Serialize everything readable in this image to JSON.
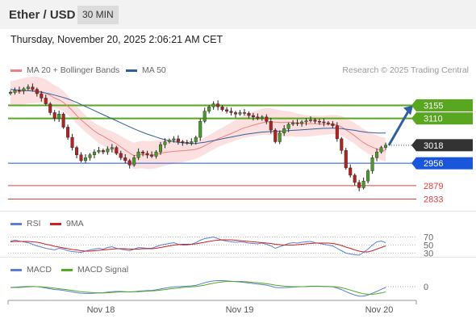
{
  "header": {
    "title": "Ether / USD",
    "timeframe": "30 MIN"
  },
  "datetime": "Thursday, November 20, 2025 2:06:21 AM CET",
  "legend": {
    "ma20_label": "MA 20 + Bollinger Bands",
    "ma50_label": "MA 50",
    "copyright": "Research © 2025 Trading Central",
    "ma20_color": "#f08080",
    "ma50_color": "#2f5f9e"
  },
  "rsi_legend": {
    "rsi": "RSI",
    "ma": "9MA",
    "rsi_color": "#5b7fd6",
    "ma_color": "#cc2222"
  },
  "macd_legend": {
    "macd": "MACD",
    "signal": "MACD Signal",
    "macd_color": "#5b7fd6",
    "signal_color": "#55aa22"
  },
  "chart_data": [
    {
      "type": "candlestick",
      "title": "Ether / USD",
      "timeframe": "30 MIN",
      "x_ticks": [
        "Nov 18",
        "Nov 19",
        "Nov 20"
      ],
      "ylim": [
        2790,
        3245
      ],
      "last_price": 3018,
      "levels": [
        {
          "label": "3155",
          "value": 3155,
          "kind": "resistance",
          "color": "#59a620"
        },
        {
          "label": "3110",
          "value": 3110,
          "kind": "resistance",
          "color": "#59a620"
        },
        {
          "label": "3018",
          "value": 3018,
          "kind": "last",
          "color": "#333333"
        },
        {
          "label": "2956",
          "value": 2956,
          "kind": "support",
          "color": "#1a56db"
        },
        {
          "label": "2879",
          "value": 2879,
          "kind": "support",
          "color": "#e04040"
        },
        {
          "label": "2833",
          "value": 2833,
          "kind": "support",
          "color": "#e04040"
        }
      ],
      "forecast_arrow": {
        "from": 3018,
        "to": 3155,
        "color": "#2f5f9e"
      },
      "close": [
        3200,
        3207,
        3205,
        3212,
        3218,
        3210,
        3195,
        3180,
        3160,
        3130,
        3110,
        3125,
        3080,
        3045,
        3010,
        2985,
        2965,
        2975,
        2985,
        2995,
        3000,
        2995,
        3005,
        3010,
        2990,
        2975,
        2965,
        2950,
        2975,
        2995,
        2990,
        2985,
        2980,
        2995,
        3020,
        3030,
        3035,
        3040,
        3030,
        3028,
        3025,
        3030,
        3045,
        3100,
        3135,
        3150,
        3160,
        3150,
        3140,
        3135,
        3130,
        3125,
        3130,
        3128,
        3120,
        3115,
        3110,
        3115,
        3100,
        3070,
        3030,
        3060,
        3075,
        3090,
        3095,
        3092,
        3098,
        3102,
        3105,
        3100,
        3098,
        3095,
        3092,
        3085,
        3040,
        3000,
        2940,
        2915,
        2890,
        2872,
        2895,
        2930,
        2975,
        2995,
        3010,
        3018
      ],
      "ma20": [
        3200,
        3200,
        3202,
        3204,
        3206,
        3206,
        3205,
        3202,
        3197,
        3189,
        3180,
        3174,
        3165,
        3152,
        3137,
        3120,
        3105,
        3092,
        3079,
        3067,
        3057,
        3049,
        3040,
        3032,
        3023,
        3012,
        3001,
        2991,
        2982,
        2985,
        2986,
        2984,
        2984,
        2986,
        2990,
        2993,
        2995,
        2997,
        2998,
        2999,
        3000,
        3002,
        3004,
        3009,
        3016,
        3024,
        3032,
        3040,
        3046,
        3052,
        3058,
        3065,
        3072,
        3078,
        3082,
        3087,
        3091,
        3095,
        3098,
        3098,
        3097,
        3096,
        3096,
        3097,
        3096,
        3094,
        3093,
        3092,
        3092,
        3092,
        3091,
        3090,
        3090,
        3090,
        3087,
        3081,
        3071,
        3061,
        3050,
        3038,
        3027,
        3018,
        3011,
        3005,
        3000,
        2998
      ],
      "ma50": [
        3210,
        3208,
        3207,
        3206,
        3205,
        3204,
        3202,
        3200,
        3197,
        3194,
        3190,
        3186,
        3182,
        3177,
        3171,
        3165,
        3158,
        3151,
        3144,
        3137,
        3130,
        3123,
        3116,
        3109,
        3102,
        3095,
        3088,
        3081,
        3074,
        3068,
        3062,
        3056,
        3051,
        3046,
        3041,
        3037,
        3033,
        3030,
        3028,
        3026,
        3025,
        3024,
        3024,
        3026,
        3028,
        3031,
        3034,
        3037,
        3040,
        3043,
        3046,
        3049,
        3052,
        3055,
        3057,
        3059,
        3061,
        3063,
        3064,
        3065,
        3065,
        3066,
        3067,
        3068,
        3069,
        3070,
        3071,
        3072,
        3073,
        3074,
        3075,
        3076,
        3076,
        3077,
        3076,
        3075,
        3073,
        3071,
        3069,
        3066,
        3064,
        3062,
        3061,
        3060,
        3060,
        3060
      ]
    },
    {
      "type": "line",
      "title": "RSI",
      "y_ticks": [
        70,
        50,
        30
      ],
      "series": [
        {
          "name": "RSI",
          "color": "#5b7fd6",
          "values": [
            60,
            62,
            60,
            58,
            56,
            52,
            48,
            45,
            42,
            40,
            38,
            42,
            40,
            36,
            34,
            33,
            32,
            35,
            38,
            40,
            42,
            40,
            44,
            46,
            42,
            40,
            38,
            36,
            40,
            44,
            43,
            42,
            42,
            46,
            50,
            52,
            54,
            56,
            52,
            50,
            50,
            52,
            56,
            62,
            66,
            68,
            70,
            66,
            62,
            60,
            58,
            57,
            58,
            57,
            55,
            54,
            53,
            55,
            52,
            48,
            42,
            46,
            50,
            54,
            56,
            55,
            57,
            58,
            59,
            56,
            54,
            52,
            50,
            48,
            42,
            36,
            30,
            28,
            26,
            25,
            32,
            40,
            50,
            58,
            60,
            56
          ]
        },
        {
          "name": "9MA",
          "color": "#cc2222",
          "values": [
            58,
            59,
            59,
            59,
            59,
            58,
            57,
            55,
            52,
            50,
            47,
            45,
            43,
            41,
            39,
            38,
            36,
            35,
            35,
            36,
            37,
            38,
            39,
            40,
            41,
            41,
            41,
            40,
            40,
            40,
            41,
            41,
            41,
            42,
            44,
            46,
            48,
            50,
            51,
            52,
            52,
            52,
            53,
            55,
            57,
            59,
            61,
            62,
            63,
            63,
            63,
            62,
            61,
            60,
            59,
            58,
            57,
            56,
            55,
            54,
            52,
            51,
            50,
            50,
            50,
            51,
            52,
            53,
            54,
            55,
            55,
            55,
            55,
            54,
            52,
            49,
            45,
            42,
            38,
            35,
            33,
            33,
            36,
            40,
            44,
            48
          ]
        }
      ]
    },
    {
      "type": "line",
      "title": "MACD",
      "y_ticks": [
        0
      ],
      "series": [
        {
          "name": "MACD",
          "color": "#5b7fd6",
          "values": [
            -0.3,
            -0.2,
            -0.1,
            0.0,
            0.1,
            0.1,
            0.0,
            -0.2,
            -0.5,
            -0.8,
            -1.1,
            -1.2,
            -1.4,
            -1.7,
            -2.0,
            -2.3,
            -2.5,
            -2.6,
            -2.6,
            -2.5,
            -2.4,
            -2.3,
            -2.1,
            -1.9,
            -1.8,
            -1.8,
            -1.9,
            -2.0,
            -1.9,
            -1.7,
            -1.6,
            -1.5,
            -1.4,
            -1.2,
            -0.9,
            -0.6,
            -0.3,
            -0.1,
            0.0,
            0.1,
            0.2,
            0.3,
            0.5,
            1.0,
            1.5,
            1.9,
            2.2,
            2.3,
            2.3,
            2.2,
            2.1,
            1.9,
            1.8,
            1.6,
            1.4,
            1.2,
            1.0,
            0.8,
            0.6,
            0.2,
            -0.3,
            -0.4,
            -0.4,
            -0.3,
            -0.2,
            -0.1,
            0.0,
            0.1,
            0.2,
            0.2,
            0.2,
            0.1,
            0.0,
            -0.1,
            -0.5,
            -1.1,
            -1.9,
            -2.6,
            -3.2,
            -3.6,
            -3.6,
            -3.2,
            -2.5,
            -1.8,
            -1.0,
            -0.3
          ]
        },
        {
          "name": "MACD Signal",
          "color": "#55aa22",
          "values": [
            -0.4,
            -0.3,
            -0.3,
            -0.2,
            -0.1,
            0.0,
            0.0,
            -0.1,
            -0.2,
            -0.4,
            -0.6,
            -0.8,
            -1.0,
            -1.2,
            -1.4,
            -1.7,
            -1.9,
            -2.1,
            -2.2,
            -2.3,
            -2.4,
            -2.4,
            -2.3,
            -2.2,
            -2.1,
            -2.0,
            -2.0,
            -2.0,
            -1.9,
            -1.9,
            -1.8,
            -1.7,
            -1.6,
            -1.5,
            -1.3,
            -1.1,
            -0.9,
            -0.7,
            -0.5,
            -0.3,
            -0.2,
            -0.1,
            0.1,
            0.3,
            0.6,
            1.0,
            1.3,
            1.6,
            1.8,
            2.0,
            2.0,
            2.0,
            2.0,
            1.9,
            1.8,
            1.6,
            1.5,
            1.3,
            1.1,
            0.9,
            0.6,
            0.4,
            0.2,
            0.1,
            0.0,
            0.0,
            0.0,
            0.0,
            0.1,
            0.1,
            0.1,
            0.1,
            0.1,
            0.0,
            -0.1,
            -0.4,
            -0.8,
            -1.3,
            -1.8,
            -2.3,
            -2.7,
            -2.9,
            -2.9,
            -2.7,
            -2.4,
            -2.0
          ]
        }
      ]
    }
  ]
}
